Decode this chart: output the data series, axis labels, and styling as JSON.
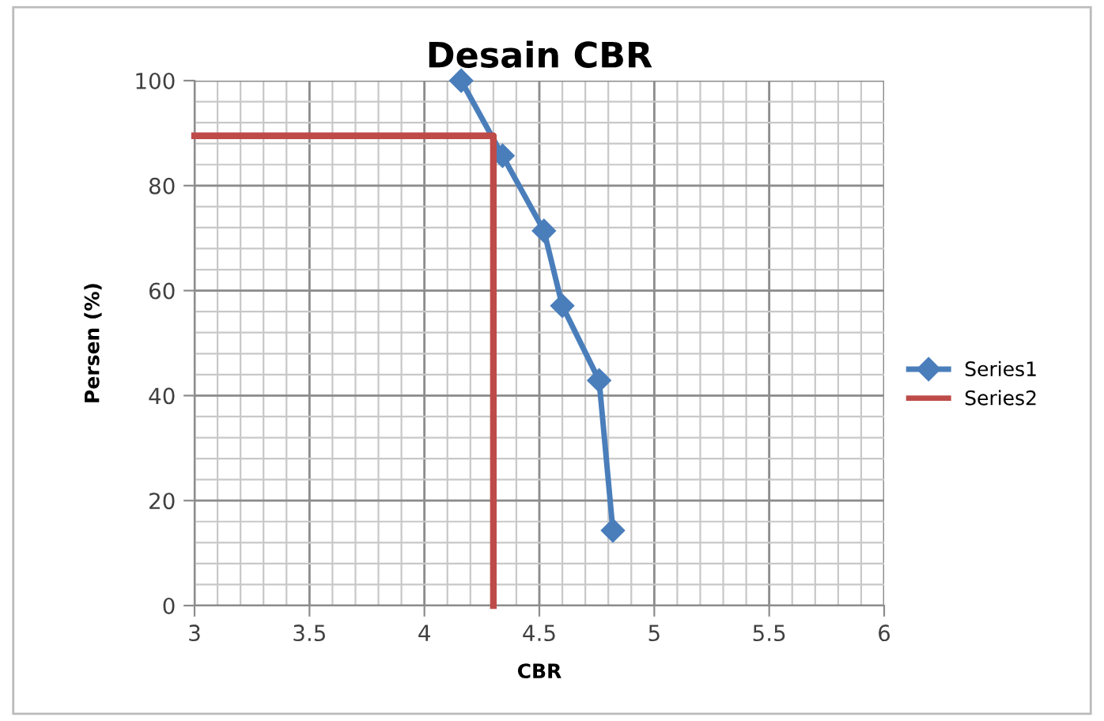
{
  "chart_data": {
    "type": "line",
    "title": "Desain CBR",
    "xlabel": "CBR",
    "ylabel": "Persen (%)",
    "xlim": [
      3,
      6
    ],
    "xticks": [
      3,
      {
        "value": 3.5,
        "label": "3.5"
      },
      4,
      {
        "value": 4.5,
        "label": "4.5"
      },
      5,
      {
        "value": 5.5,
        "label": "5.5"
      },
      6
    ],
    "ylim": [
      0,
      100
    ],
    "yticks": [
      0,
      20,
      40,
      60,
      80,
      100
    ],
    "grid": true,
    "legend": "right",
    "series": [
      {
        "name": "Series1",
        "color": "#4a7ebb",
        "marker": "diamond",
        "x": [
          4.16,
          4.34,
          4.52,
          4.6,
          4.76,
          4.82
        ],
        "values": [
          100,
          85.7,
          71.4,
          57.1,
          42.9,
          14.3
        ]
      },
      {
        "name": "Series2",
        "color": "#be4b48",
        "x": [
          3,
          4.3,
          4.3
        ],
        "values": [
          89.5,
          89.5,
          0
        ]
      }
    ]
  }
}
